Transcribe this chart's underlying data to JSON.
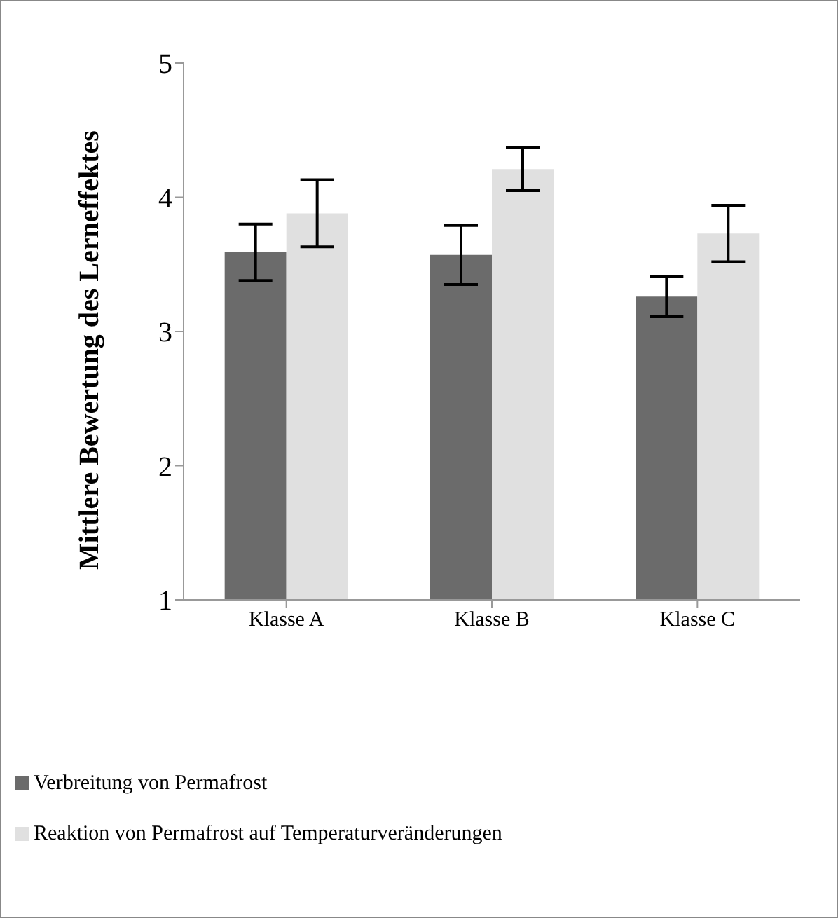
{
  "chart_data": {
    "type": "bar",
    "ylabel": "Mittlere Bewertung des Lerneffektes",
    "categories": [
      "Klasse A",
      "Klasse B",
      "Klasse C"
    ],
    "series": [
      {
        "name": "Verbreitung von Permafrost",
        "color": "#6b6b6b",
        "values": [
          3.59,
          3.57,
          3.26
        ],
        "errors": [
          0.21,
          0.22,
          0.15
        ]
      },
      {
        "name": "Reaktion von Permafrost auf Temperaturveränderungen",
        "color": "#e0e0e0",
        "values": [
          3.88,
          4.21,
          3.73
        ],
        "errors": [
          0.25,
          0.16,
          0.21
        ]
      }
    ],
    "ylim": [
      1,
      5
    ],
    "yticks": [
      1,
      2,
      3,
      4,
      5
    ],
    "grid": false,
    "legend": "bottom left"
  }
}
